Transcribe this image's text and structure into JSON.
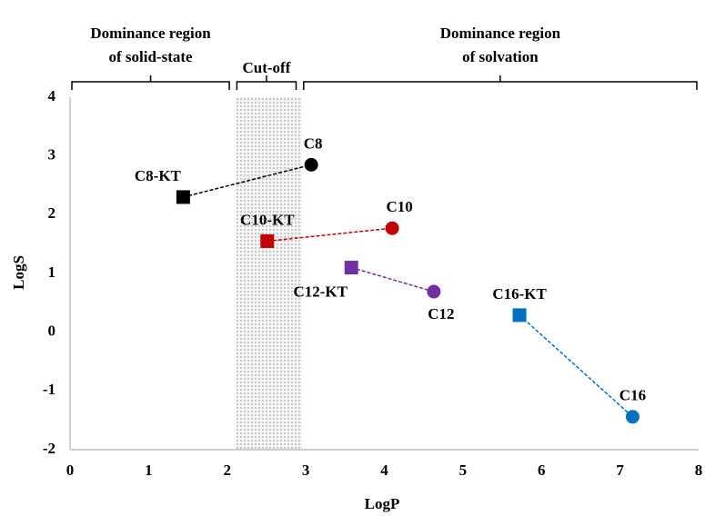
{
  "chart_data": {
    "type": "scatter",
    "xlabel": "LogP",
    "ylabel": "LogS",
    "xlim": [
      0,
      8
    ],
    "xticks": [
      0,
      1,
      2,
      3,
      4,
      5,
      6,
      7,
      8
    ],
    "ylim": [
      -2,
      4
    ],
    "yticks": [
      -2,
      -1,
      0,
      1,
      2,
      3,
      4
    ],
    "grid": false,
    "shaded_region": [
      2.1,
      2.95
    ],
    "regions": [
      {
        "label": [
          "Dominance region",
          "of solid-state"
        ],
        "x": [
          0,
          2.05
        ]
      },
      {
        "label": [
          "Cut-off"
        ],
        "x": [
          2.1,
          2.9
        ]
      },
      {
        "label": [
          "Dominance region",
          "of solvation"
        ],
        "x": [
          2.95,
          8
        ]
      }
    ],
    "series": [
      {
        "color": "#000000",
        "labels": [
          "C8-KT",
          "C8"
        ],
        "markers": [
          "square",
          "circle"
        ],
        "x": [
          1.44,
          3.07
        ],
        "values": [
          2.3,
          2.85
        ]
      },
      {
        "color": "#c00000",
        "labels": [
          "C10-KT",
          "C10"
        ],
        "markers": [
          "square",
          "circle"
        ],
        "x": [
          2.51,
          4.1
        ],
        "values": [
          1.55,
          1.77
        ]
      },
      {
        "color": "#7030a0",
        "labels": [
          "C12-KT",
          "C12"
        ],
        "markers": [
          "square",
          "circle"
        ],
        "x": [
          3.58,
          4.63
        ],
        "values": [
          1.1,
          0.69
        ]
      },
      {
        "color": "#0070c0",
        "labels": [
          "C16-KT",
          "C16"
        ],
        "markers": [
          "square",
          "circle"
        ],
        "x": [
          5.72,
          7.16
        ],
        "values": [
          0.29,
          -1.44
        ]
      }
    ]
  }
}
